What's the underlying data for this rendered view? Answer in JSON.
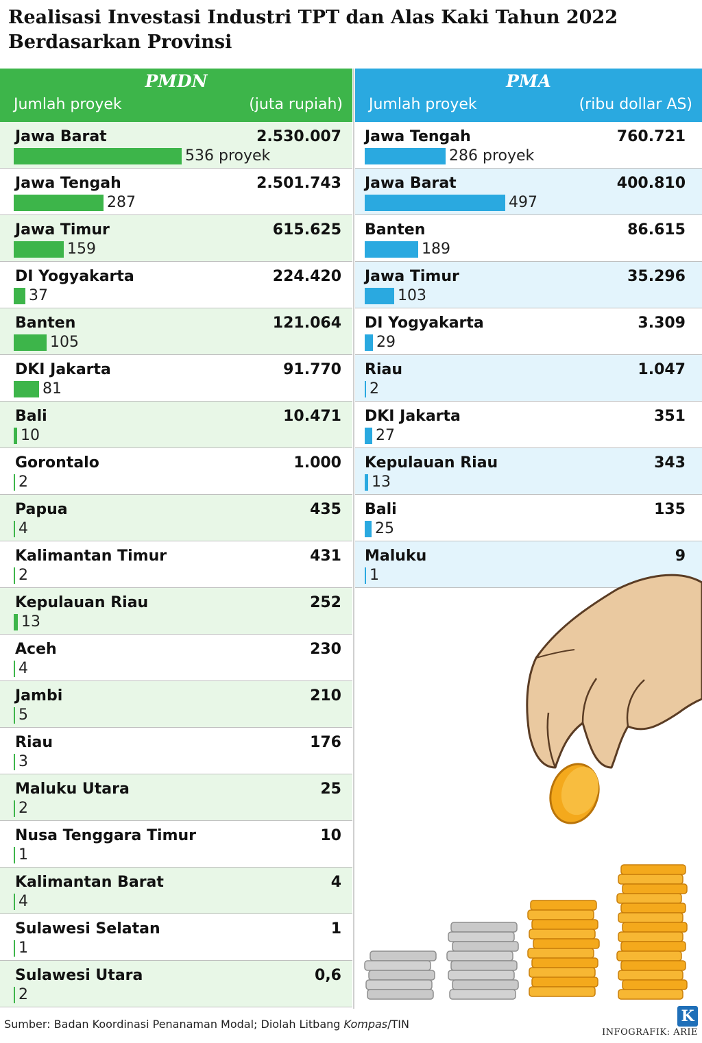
{
  "title": "Realisasi Investasi Industri TPT dan Alas Kaki Tahun 2022 Berdasarkan Provinsi",
  "chart_data": [
    {
      "type": "bar",
      "title": "PMDN",
      "subtitle_left": "Jumlah proyek",
      "subtitle_right": "(juta rupiah)",
      "rows": [
        {
          "province": "Jawa Barat",
          "value": "2.530.007",
          "projects": 536,
          "project_label": "536 proyek"
        },
        {
          "province": "Jawa Tengah",
          "value": "2.501.743",
          "projects": 287,
          "project_label": "287"
        },
        {
          "province": "Jawa Timur",
          "value": "615.625",
          "projects": 159,
          "project_label": "159"
        },
        {
          "province": "DI Yogyakarta",
          "value": "224.420",
          "projects": 37,
          "project_label": "37"
        },
        {
          "province": "Banten",
          "value": "121.064",
          "projects": 105,
          "project_label": "105"
        },
        {
          "province": "DKI Jakarta",
          "value": "91.770",
          "projects": 81,
          "project_label": "81"
        },
        {
          "province": "Bali",
          "value": "10.471",
          "projects": 10,
          "project_label": "10"
        },
        {
          "province": "Gorontalo",
          "value": "1.000",
          "projects": 2,
          "project_label": "2"
        },
        {
          "province": "Papua",
          "value": "435",
          "projects": 4,
          "project_label": "4"
        },
        {
          "province": "Kalimantan Timur",
          "value": "431",
          "projects": 2,
          "project_label": "2"
        },
        {
          "province": "Kepulauan Riau",
          "value": "252",
          "projects": 13,
          "project_label": "13"
        },
        {
          "province": "Aceh",
          "value": "230",
          "projects": 4,
          "project_label": "4"
        },
        {
          "province": "Jambi",
          "value": "210",
          "projects": 5,
          "project_label": "5"
        },
        {
          "province": "Riau",
          "value": "176",
          "projects": 3,
          "project_label": "3"
        },
        {
          "province": "Maluku Utara",
          "value": "25",
          "projects": 2,
          "project_label": "2"
        },
        {
          "province": "Nusa Tenggara Timur",
          "value": "10",
          "projects": 1,
          "project_label": "1"
        },
        {
          "province": "Kalimantan Barat",
          "value": "4",
          "projects": 4,
          "project_label": "4"
        },
        {
          "province": "Sulawesi Selatan",
          "value": "1",
          "projects": 1,
          "project_label": "1"
        },
        {
          "province": "Sulawesi Utara",
          "value": "0,6",
          "projects": 2,
          "project_label": "2"
        }
      ]
    },
    {
      "type": "bar",
      "title": "PMA",
      "subtitle_left": "Jumlah proyek",
      "subtitle_right": "(ribu dollar AS)",
      "rows": [
        {
          "province": "Jawa Tengah",
          "value": "760.721",
          "projects": 286,
          "project_label": "286 proyek"
        },
        {
          "province": "Jawa Barat",
          "value": "400.810",
          "projects": 497,
          "project_label": "497"
        },
        {
          "province": "Banten",
          "value": "86.615",
          "projects": 189,
          "project_label": "189"
        },
        {
          "province": "Jawa Timur",
          "value": "35.296",
          "projects": 103,
          "project_label": "103"
        },
        {
          "province": "DI Yogyakarta",
          "value": "3.309",
          "projects": 29,
          "project_label": "29"
        },
        {
          "province": "Riau",
          "value": "1.047",
          "projects": 2,
          "project_label": "2"
        },
        {
          "province": "DKI Jakarta",
          "value": "351",
          "projects": 27,
          "project_label": "27"
        },
        {
          "province": "Kepulauan Riau",
          "value": "343",
          "projects": 13,
          "project_label": "13"
        },
        {
          "province": "Bali",
          "value": "135",
          "projects": 25,
          "project_label": "25"
        },
        {
          "province": "Maluku",
          "value": "9",
          "projects": 1,
          "project_label": "1"
        }
      ]
    }
  ],
  "source_prefix": "Sumber: Badan Koordinasi Penanaman Modal; Diolah Litbang ",
  "source_italic": "Kompas",
  "source_suffix": "/TIN",
  "credit": "INFOGRAFIK: ARIE",
  "logo_letter": "K",
  "colors": {
    "pmdn": "#3db54a",
    "pma": "#2aa9e0",
    "pmdn_band": "#e8f7e7",
    "pma_band": "#e3f4fc",
    "logo": "#1f6fb8"
  },
  "illustration": "hand-placing-coin-on-coin-stacks"
}
